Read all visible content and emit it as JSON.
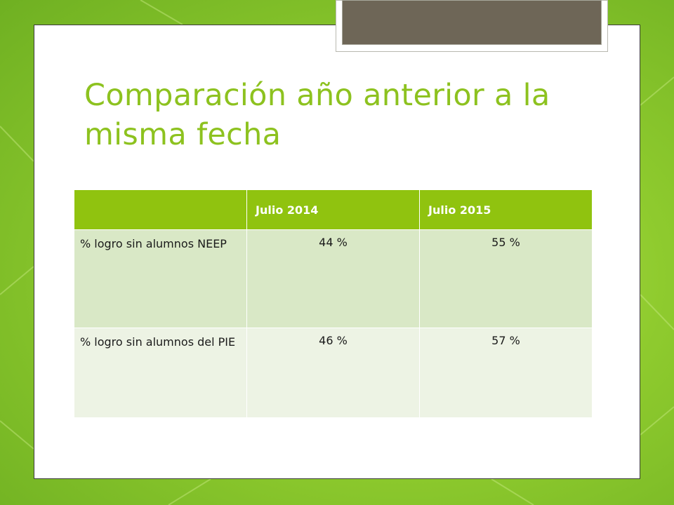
{
  "slide": {
    "title": "Comparación año anterior a la misma fecha"
  },
  "table": {
    "headers": [
      "",
      "Julio 2014",
      "Julio 2015"
    ],
    "rows": [
      {
        "label": "% logro sin alumnos NEEP",
        "julio_2014": "44 %",
        "julio_2015": "55 %"
      },
      {
        "label": "% logro sin alumnos del PIE",
        "julio_2014": "46 %",
        "julio_2015": "57 %"
      }
    ]
  },
  "colors": {
    "title": "#8dc21f",
    "header_bg": "#90c30f",
    "row_odd_bg": "#d9e8c6",
    "row_even_bg": "#edf3e4",
    "background": "#8fcb2e"
  }
}
